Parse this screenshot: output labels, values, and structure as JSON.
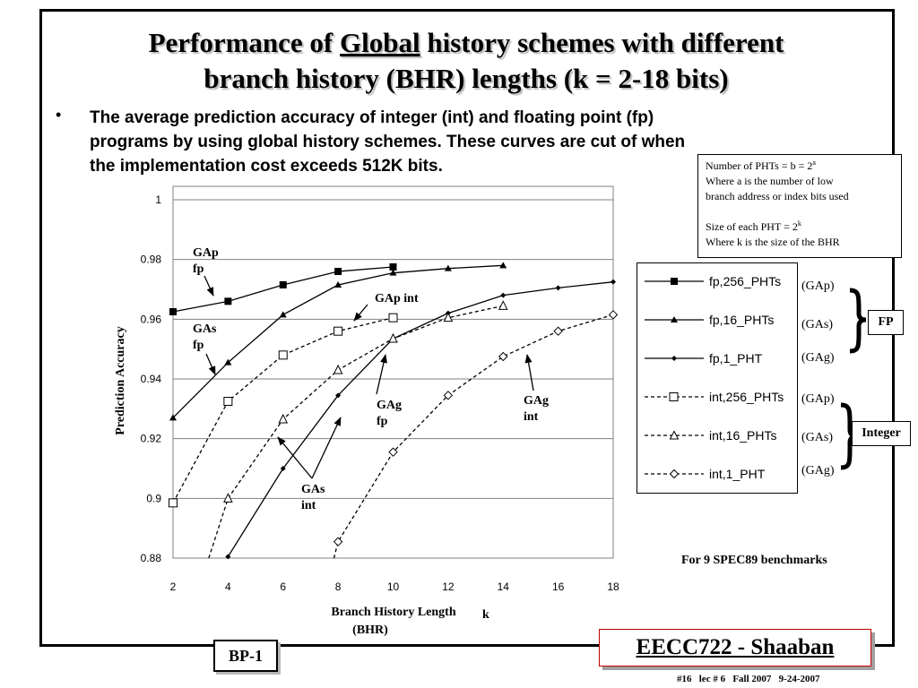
{
  "slide": {
    "title_before": "Performance of ",
    "title_underlined": "Global",
    "title_after": " history schemes with different",
    "title_line2": "branch history (BHR) lengths (k = 2-18 bits)",
    "bullet_marker": "•",
    "bullet_line1": "The average prediction accuracy of integer (int) and floating point (fp)",
    "bullet_line2": "programs by using global history schemes. These curves are cut of when",
    "bullet_line3": "the implementation cost exceeds 512K bits.",
    "note_line1_pre": "Number of PHTs = b = 2",
    "note_line1_sup": "a",
    "note_line2": "Where a is the number of low",
    "note_line3": "branch address or index bits used",
    "note_line4_pre": "Size of each PHT = 2",
    "note_line4_sup": "k",
    "note_line5": "Where k is the size of the BHR",
    "spec_note": "For 9 SPEC89 benchmarks",
    "bp_label": "BP-1",
    "course_label": "EECC722 - Shaaban",
    "footer": "#16   lec # 6   Fall 2007   9-24-2007"
  },
  "legend": {
    "entries": [
      {
        "label": "fp,256_PHTs",
        "scheme": "(GAp)"
      },
      {
        "label": "fp,16_PHTs",
        "scheme": "(GAs)"
      },
      {
        "label": "fp,1_PHT",
        "scheme": "(GAg)"
      },
      {
        "label": "int,256_PHTs",
        "scheme": "(GAp)"
      },
      {
        "label": "int,16_PHTs",
        "scheme": "(GAs)"
      },
      {
        "label": "int,1_PHT",
        "scheme": "(GAg)"
      }
    ],
    "group_fp": "FP",
    "group_int": "Integer"
  },
  "annotations": {
    "gap_fp_1": "GAp",
    "gap_fp_2": "fp",
    "gas_fp_1": "GAs",
    "gas_fp_2": "fp",
    "gap_int": "GAp int",
    "gag_fp_1": "GAg",
    "gag_fp_2": "fp",
    "gas_int_1": "GAs",
    "gas_int_2": "int",
    "gag_int_1": "GAg",
    "gag_int_2": "int"
  },
  "chart_data": {
    "type": "line",
    "title": "",
    "xlabel": "Branch History Length",
    "xlabel_suffix": "k",
    "xlabel_sub": "(BHR)",
    "ylabel": "Prediction Accuracy",
    "xlim": [
      2,
      18
    ],
    "ylim": [
      0.88,
      1
    ],
    "x_ticks": [
      "2",
      "4",
      "6",
      "8",
      "10",
      "12",
      "14",
      "16",
      "18"
    ],
    "y_ticks": [
      "0.88",
      "0.9",
      "0.92",
      "0.94",
      "0.96",
      "0.98",
      "1"
    ],
    "grid": "horizontal",
    "legend_position": "right",
    "series": [
      {
        "name": "fp,256_PHTs",
        "marker": "filled-square",
        "dashed": false,
        "x": [
          2,
          4,
          6,
          8,
          10
        ],
        "y": [
          0.9625,
          0.966,
          0.9715,
          0.976,
          0.9775
        ]
      },
      {
        "name": "fp,16_PHTs",
        "marker": "filled-triangle",
        "dashed": false,
        "x": [
          2,
          4,
          6,
          8,
          10,
          12,
          14
        ],
        "y": [
          0.927,
          0.9455,
          0.9615,
          0.9715,
          0.9755,
          0.977,
          0.978
        ]
      },
      {
        "name": "fp,1_PHT",
        "marker": "filled-diamond",
        "dashed": false,
        "x": [
          3.95,
          4,
          6,
          8,
          10,
          12,
          14,
          16,
          18
        ],
        "y": [
          0.88,
          0.8805,
          0.91,
          0.9345,
          0.9535,
          0.962,
          0.968,
          0.9705,
          0.9725
        ]
      },
      {
        "name": "int,256_PHTs",
        "marker": "open-square",
        "dashed": true,
        "x": [
          2,
          4,
          6,
          8,
          10
        ],
        "y": [
          0.8985,
          0.9325,
          0.948,
          0.956,
          0.9605
        ]
      },
      {
        "name": "int,16_PHTs",
        "marker": "open-triangle",
        "dashed": true,
        "x": [
          3.3,
          4,
          6,
          8,
          10,
          12,
          14
        ],
        "y": [
          0.88,
          0.9,
          0.9265,
          0.943,
          0.9535,
          0.9605,
          0.9645
        ]
      },
      {
        "name": "int,1_PHT",
        "marker": "open-diamond",
        "dashed": true,
        "x": [
          7.85,
          8,
          10,
          12,
          14,
          16,
          18
        ],
        "y": [
          0.88,
          0.8855,
          0.9155,
          0.9345,
          0.9475,
          0.956,
          0.9615
        ]
      }
    ]
  }
}
